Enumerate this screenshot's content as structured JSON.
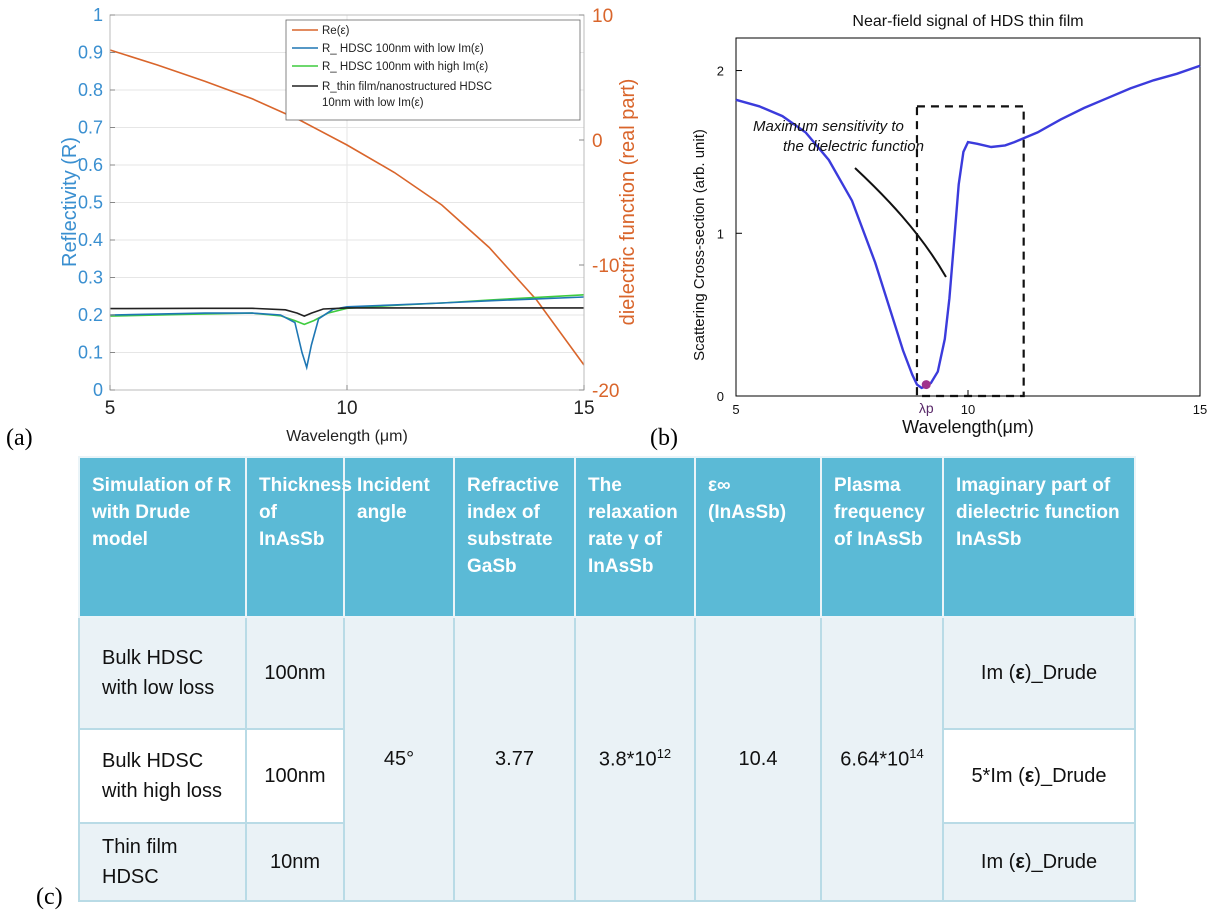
{
  "panel_labels": {
    "a": "(a)",
    "b": "(b)",
    "c": "(c)"
  },
  "chart_data": [
    {
      "id": "a",
      "type": "line",
      "title": "",
      "xlabel": "Wavelength (μm)",
      "ylabel_left": "Reflectivity (R)",
      "ylabel_right": "dielectric function (real part)",
      "xlim": [
        5,
        15
      ],
      "ylim_left": [
        0,
        1
      ],
      "ylim_right": [
        -20,
        10
      ],
      "x_ticks": [
        "5",
        "10",
        "15"
      ],
      "y_ticks_left": [
        "0",
        "0.1",
        "0.2",
        "0.3",
        "0.4",
        "0.5",
        "0.6",
        "0.7",
        "0.8",
        "0.9",
        "1"
      ],
      "y_ticks_right": [
        "-20",
        "-10",
        "0",
        "10"
      ],
      "grid": true,
      "legend_position": "top-right",
      "colors": {
        "left_axis": "#3a8fd0",
        "right_axis": "#d9652b"
      },
      "series": [
        {
          "name": "Re(ε)",
          "axis": "right",
          "color": "#d9652b",
          "x": [
            5,
            6,
            7,
            8,
            9,
            10,
            11,
            12,
            13,
            14,
            15
          ],
          "y": [
            7.2,
            6.0,
            4.7,
            3.3,
            1.6,
            -0.4,
            -2.6,
            -5.2,
            -8.6,
            -12.8,
            -18.0
          ]
        },
        {
          "name": "R_ HDSC 100nm with low Im(ε)",
          "axis": "left",
          "color": "#1f77b4",
          "x": [
            5,
            7,
            8,
            8.6,
            8.9,
            9.05,
            9.15,
            9.25,
            9.4,
            9.7,
            10,
            11,
            12,
            13,
            14,
            15
          ],
          "y": [
            0.2,
            0.205,
            0.205,
            0.2,
            0.18,
            0.1,
            0.06,
            0.12,
            0.19,
            0.215,
            0.222,
            0.227,
            0.232,
            0.238,
            0.243,
            0.248
          ]
        },
        {
          "name": "R_ HDSC 100nm with high Im(ε)",
          "axis": "left",
          "color": "#3fcc3f",
          "x": [
            5,
            7,
            8,
            8.6,
            8.9,
            9.1,
            9.3,
            9.6,
            10,
            11,
            12,
            13,
            14,
            15
          ],
          "y": [
            0.197,
            0.203,
            0.205,
            0.198,
            0.185,
            0.175,
            0.185,
            0.205,
            0.218,
            0.226,
            0.232,
            0.24,
            0.247,
            0.254
          ]
        },
        {
          "name": "R_thin film/nanostructured HDSC 10nm with low Im(ε)",
          "axis": "left",
          "color": "#222222",
          "x": [
            5,
            7,
            8,
            8.7,
            8.95,
            9.1,
            9.25,
            9.5,
            10,
            11,
            12,
            13,
            14,
            15
          ],
          "y": [
            0.217,
            0.218,
            0.218,
            0.214,
            0.205,
            0.197,
            0.205,
            0.216,
            0.219,
            0.219,
            0.219,
            0.219,
            0.219,
            0.219
          ]
        }
      ]
    },
    {
      "id": "b",
      "type": "line",
      "title": "Near-field signal of HDS thin film",
      "xlabel": "Wavelength(μm)",
      "ylabel": "Scattering Cross-section (arb. unit)",
      "xlim": [
        5,
        15
      ],
      "ylim": [
        0,
        2.2
      ],
      "x_ticks": [
        "5",
        "10",
        "15"
      ],
      "y_ticks": [
        "0",
        "1",
        "2"
      ],
      "grid": false,
      "annotation": "Maximum sensitivity to the dielectric function",
      "marker_label": "λp",
      "marker_point": {
        "x": 9.1,
        "y": 0.07
      },
      "highlight_box_x": [
        8.9,
        11.2
      ],
      "colors": {
        "line": "#3b3bdc",
        "marker": "#a0348c"
      },
      "series": [
        {
          "x": [
            5,
            5.5,
            6,
            6.5,
            7,
            7.5,
            8,
            8.3,
            8.6,
            8.8,
            8.9,
            9.0,
            9.1,
            9.2,
            9.35,
            9.5,
            9.6,
            9.7,
            9.8,
            9.9,
            10.0,
            10.2,
            10.5,
            10.8,
            11.0,
            11.5,
            12,
            12.5,
            13,
            13.5,
            14,
            14.5,
            15
          ],
          "y": [
            1.82,
            1.78,
            1.72,
            1.62,
            1.45,
            1.2,
            0.82,
            0.55,
            0.28,
            0.13,
            0.07,
            0.05,
            0.06,
            0.08,
            0.15,
            0.35,
            0.6,
            0.95,
            1.3,
            1.5,
            1.56,
            1.55,
            1.53,
            1.54,
            1.56,
            1.62,
            1.7,
            1.77,
            1.83,
            1.89,
            1.94,
            1.98,
            2.03
          ]
        }
      ]
    }
  ],
  "table": {
    "headers": [
      "Simulation of R with Drude model",
      "Thickness of InAsSb",
      "Incident angle",
      "Refractive index of substrate GaSb",
      "The relaxation rate γ of InAsSb",
      "ε∞ (InAsSb)",
      "Plasma frequency of InAsSb",
      "Imaginary part of dielectric function InAsSb"
    ],
    "rows": [
      {
        "label": "Bulk HDSC with low loss",
        "thickness": "100nm",
        "im_prefix": "Im (",
        "im_eps": "ε",
        "im_suffix": ")_Drude"
      },
      {
        "label": "Bulk HDSC with high loss",
        "thickness": "100nm",
        "im_prefix": "5*Im (",
        "im_eps": "ε",
        "im_suffix": ")_Drude"
      },
      {
        "label": "Thin film HDSC",
        "thickness": "10nm",
        "im_prefix": "Im (",
        "im_eps": "ε",
        "im_suffix": ")_Drude"
      }
    ],
    "shared": {
      "incident_angle": "45°",
      "refractive_index": "3.77",
      "relaxation_base": "3.8*10",
      "relaxation_exp": "12",
      "eps_inf": "10.4",
      "plasma_base": "6.64*10",
      "plasma_exp": "14"
    }
  }
}
